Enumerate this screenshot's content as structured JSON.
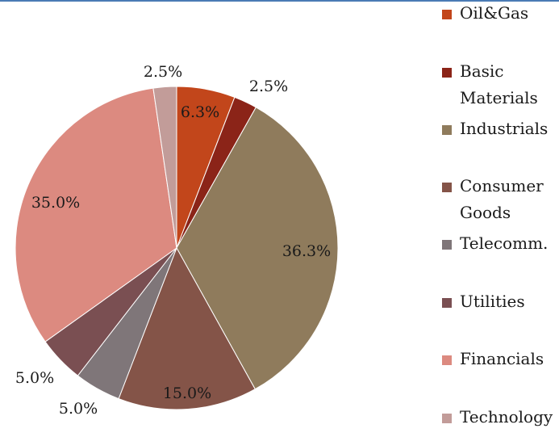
{
  "chart_data": {
    "type": "pie",
    "categories": [
      "Oil&Gas",
      "Basic Materials",
      "Industrials",
      "Consumer Goods",
      "Telecomm.",
      "Utilities",
      "Financials",
      "Technology"
    ],
    "values": [
      6.3,
      2.5,
      36.3,
      15.0,
      5.0,
      5.0,
      35.0,
      2.5
    ],
    "data_labels": [
      "6.3%",
      "2.5%",
      "36.3%",
      "15.0%",
      "5.0%",
      "5.0%",
      "35.0%",
      "2.5%"
    ],
    "colors": [
      "#c2461b",
      "#8b2418",
      "#8f7b5c",
      "#845448",
      "#7f7679",
      "#7a4f52",
      "#dc8a80",
      "#c29c99"
    ],
    "legend_position": "right",
    "start_angle_deg": 0,
    "direction": "clockwise"
  },
  "legend": {
    "items": [
      {
        "label": "Oil&Gas"
      },
      {
        "label": "Basic Materials"
      },
      {
        "label": "Industrials"
      },
      {
        "label": "Consumer Goods"
      },
      {
        "label": "Telecomm."
      },
      {
        "label": "Utilities"
      },
      {
        "label": "Financials"
      },
      {
        "label": "Technology"
      }
    ]
  }
}
